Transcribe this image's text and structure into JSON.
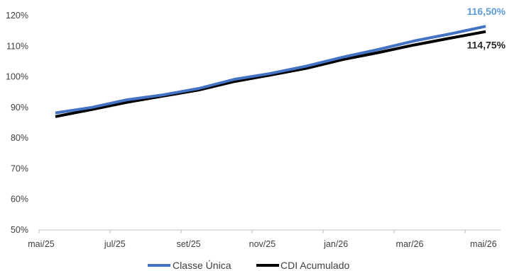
{
  "chart_data": {
    "type": "line",
    "y_unit": "%",
    "ylim": [
      50,
      120
    ],
    "y_ticks": [
      "50%",
      "60%",
      "70%",
      "80%",
      "90%",
      "100%",
      "110%",
      "120%"
    ],
    "x_tick_labels": [
      "mai/25",
      "jul/25",
      "set/25",
      "nov/25",
      "jan/26",
      "mar/26",
      "mai/26"
    ],
    "x": [
      "2025-05",
      "2025-06",
      "2025-07",
      "2025-08",
      "2025-09",
      "2025-10",
      "2025-11",
      "2025-12",
      "2026-01",
      "2026-02",
      "2026-03",
      "2026-04",
      "2026-05"
    ],
    "grid": false,
    "legend_position": "bottom",
    "series": [
      {
        "name": "Classe Única",
        "color": "#4472C4",
        "values": [
          88.2,
          90.0,
          92.5,
          94.1,
          96.2,
          99.2,
          101.1,
          103.5,
          106.4,
          108.9,
          111.7,
          114.0,
          116.5
        ],
        "end_label": "116,50%",
        "end_label_color": "#5B9BD5"
      },
      {
        "name": "CDI Acumulado",
        "color": "#000000",
        "values": [
          87.0,
          89.3,
          91.7,
          93.7,
          95.7,
          98.5,
          100.6,
          102.8,
          105.6,
          107.9,
          110.4,
          112.6,
          114.75
        ],
        "end_label": "114,75%",
        "end_label_color": "#262626"
      }
    ]
  }
}
